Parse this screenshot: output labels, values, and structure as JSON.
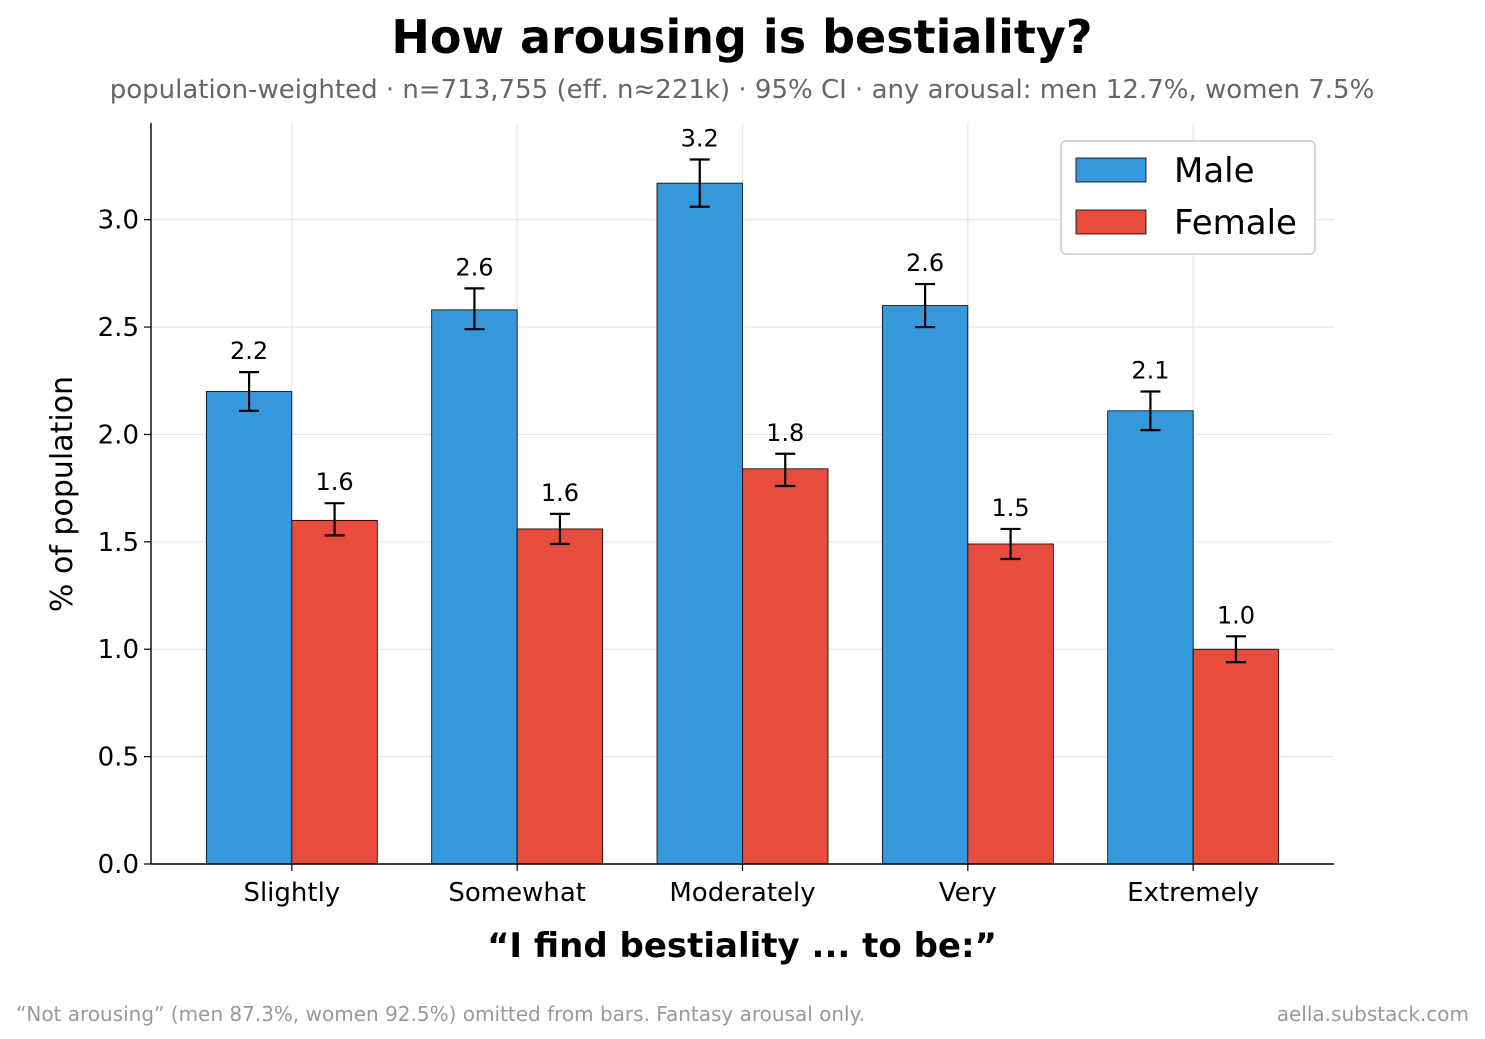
{
  "chart_data": {
    "type": "bar",
    "title": "How arousing is bestiality?",
    "subtitle": "population-weighted · n=713,755 (eff. n≈221k) · 95% CI · any arousal: men 12.7%, women 7.5%",
    "xlabel": "“I find bestiality ... to be:”",
    "ylabel": "% of population",
    "categories": [
      "Slightly",
      "Somewhat",
      "Moderately",
      "Very",
      "Extremely"
    ],
    "ylim": [
      0,
      3.45
    ],
    "yticks": [
      "0.0",
      "0.5",
      "1.0",
      "1.5",
      "2.0",
      "2.5",
      "3.0"
    ],
    "grid": true,
    "legend_position": "top-right",
    "series": [
      {
        "name": "Male",
        "color": "#3498db",
        "values": [
          2.2,
          2.58,
          3.17,
          2.6,
          2.11
        ],
        "ci_low": [
          2.11,
          2.49,
          3.06,
          2.5,
          2.02
        ],
        "ci_high": [
          2.29,
          2.68,
          3.28,
          2.7,
          2.2
        ],
        "labels": [
          "2.2",
          "2.6",
          "3.2",
          "2.6",
          "2.1"
        ]
      },
      {
        "name": "Female",
        "color": "#e74c3c",
        "values": [
          1.6,
          1.56,
          1.84,
          1.49,
          1.0
        ],
        "ci_low": [
          1.53,
          1.49,
          1.76,
          1.42,
          0.94
        ],
        "ci_high": [
          1.68,
          1.63,
          1.91,
          1.56,
          1.06
        ],
        "labels": [
          "1.6",
          "1.6",
          "1.8",
          "1.5",
          "1.0"
        ]
      }
    ],
    "footnote_left": "“Not arousing” (men 87.3%, women 92.5%) omitted from bars. Fantasy arousal only.",
    "footnote_right": "aella.substack.com"
  }
}
